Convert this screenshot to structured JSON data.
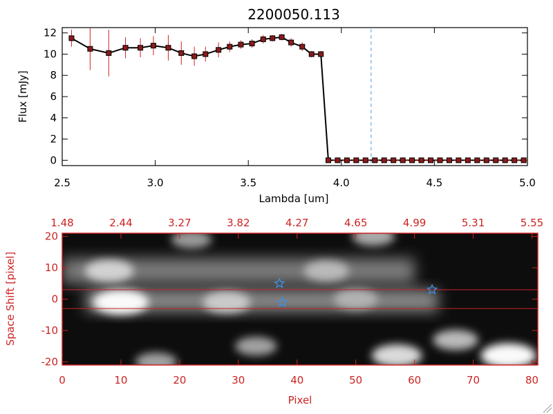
{
  "chart_data": [
    {
      "type": "line",
      "title": "2200050.113",
      "xlabel": "Lambda [um]",
      "ylabel": "Flux [mJy]",
      "xlim": [
        2.5,
        5.0
      ],
      "ylim": [
        -0.5,
        12.5
      ],
      "x_ticks": [
        "2.5",
        "3.0",
        "3.5",
        "4.0",
        "4.5",
        "5.0"
      ],
      "y_ticks": [
        "0",
        "2",
        "4",
        "6",
        "8",
        "10",
        "12"
      ],
      "line_color": "#000000",
      "marker_color": "#8b1a1a",
      "errorbar_color": "#d42020",
      "marker_line": {
        "x": 4.16,
        "color": "#4a9ee0",
        "style": "dashed"
      },
      "series": [
        {
          "name": "flux",
          "x": [
            2.55,
            2.65,
            2.75,
            2.84,
            2.92,
            2.99,
            3.07,
            3.14,
            3.21,
            3.27,
            3.34,
            3.4,
            3.46,
            3.52,
            3.58,
            3.63,
            3.68,
            3.73,
            3.79,
            3.84,
            3.89,
            3.93,
            3.98,
            4.03,
            4.08,
            4.13,
            4.18,
            4.23,
            4.28,
            4.33,
            4.38,
            4.43,
            4.48,
            4.53,
            4.58,
            4.63,
            4.68,
            4.73,
            4.78,
            4.83,
            4.88,
            4.93,
            4.98
          ],
          "y": [
            11.5,
            10.5,
            10.1,
            10.6,
            10.6,
            10.8,
            10.6,
            10.1,
            9.8,
            10.0,
            10.4,
            10.7,
            10.9,
            11.0,
            11.4,
            11.5,
            11.6,
            11.1,
            10.7,
            10.0,
            10.0,
            0.0,
            0.0,
            0.0,
            0.0,
            0.0,
            0.0,
            0.0,
            0.0,
            0.0,
            0.0,
            0.0,
            0.0,
            0.0,
            0.0,
            0.0,
            0.0,
            0.0,
            0.0,
            0.0,
            0.0,
            0.0,
            0.0
          ],
          "yerr": [
            0.8,
            2.0,
            2.2,
            1.0,
            0.9,
            0.9,
            1.2,
            1.1,
            0.9,
            0.7,
            0.7,
            0.5,
            0.4,
            0.4,
            0.4,
            0.3,
            0.3,
            0.4,
            0.4,
            0.3,
            0.3,
            0,
            0,
            0,
            0,
            0,
            0,
            0,
            0,
            0,
            0,
            0,
            0,
            0,
            0,
            0,
            0,
            0,
            0,
            0,
            0,
            0,
            0
          ]
        }
      ]
    },
    {
      "type": "heatmap",
      "xlabel": "Pixel",
      "ylabel": "Space Shift [pixel]",
      "xlim": [
        0,
        81
      ],
      "ylim": [
        -21,
        21
      ],
      "x_ticks": [
        "0",
        "10",
        "20",
        "30",
        "40",
        "50",
        "60",
        "70",
        "80"
      ],
      "y_ticks": [
        "-20",
        "-10",
        "0",
        "10",
        "20"
      ],
      "top_axis_labels": [
        "1.48",
        "2.44",
        "3.27",
        "3.82",
        "4.27",
        "4.65",
        "4.99",
        "5.31",
        "5.55"
      ],
      "axis_color": "#cc2222",
      "extraction_lines": [
        3,
        -3
      ],
      "star_color": "#3f8fe8",
      "stars": [
        {
          "x": 37,
          "y": 5
        },
        {
          "x": 37.5,
          "y": -1
        },
        {
          "x": 63,
          "y": 3
        }
      ],
      "bright_features": [
        {
          "x": 10,
          "y": -1,
          "intensity": 1.0
        },
        {
          "x": 28,
          "y": -1,
          "intensity": 0.7
        },
        {
          "x": 50,
          "y": 0,
          "intensity": 0.55
        },
        {
          "x": 8,
          "y": 9,
          "intensity": 0.75
        },
        {
          "x": 45,
          "y": 9,
          "intensity": 0.6
        },
        {
          "x": 76,
          "y": -18,
          "intensity": 1.0
        },
        {
          "x": 57,
          "y": -18,
          "intensity": 0.8
        },
        {
          "x": 67,
          "y": -13,
          "intensity": 0.6
        },
        {
          "x": 33,
          "y": -15,
          "intensity": 0.45
        },
        {
          "x": 53,
          "y": 20,
          "intensity": 0.5
        },
        {
          "x": 22,
          "y": 19,
          "intensity": 0.4
        },
        {
          "x": 16,
          "y": -20,
          "intensity": 0.45
        }
      ]
    }
  ]
}
